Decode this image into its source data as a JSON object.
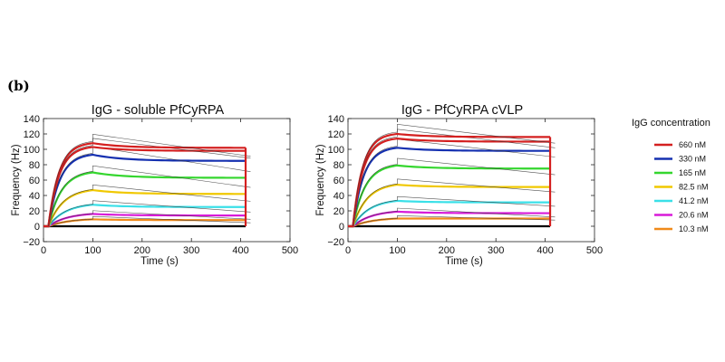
{
  "panel_label": "(b)",
  "legend": {
    "title": "IgG concentration",
    "entries": [
      {
        "label": "660 nM",
        "color": "#d42020"
      },
      {
        "label": "330 nM",
        "color": "#1530b0"
      },
      {
        "label": "165 nM",
        "color": "#34d62e"
      },
      {
        "label": "82.5 nM",
        "color": "#f0c800"
      },
      {
        "label": "41.2 nM",
        "color": "#3ae0e8"
      },
      {
        "label": "20.6 nM",
        "color": "#d81ad8"
      },
      {
        "label": "10.3 nM",
        "color": "#f08a1a"
      }
    ]
  },
  "chart_data": [
    {
      "type": "line",
      "title": "IgG - soluble PfCyRPA",
      "xlabel": "Time (s)",
      "ylabel": "Frequency (Hz)",
      "xlim": [
        0,
        500
      ],
      "ylim": [
        -20,
        140
      ],
      "x_ticks": [
        0,
        100,
        200,
        300,
        400,
        500
      ],
      "y_ticks": [
        -20,
        0,
        20,
        40,
        60,
        80,
        100,
        120,
        140
      ],
      "association_end_s": 100,
      "dissociation_end_s": 410,
      "series": [
        {
          "name": "660 nM",
          "color": "#d42020",
          "peak": 108,
          "end": 102
        },
        {
          "name": "660 nM",
          "color": "#d42020",
          "peak": 103,
          "end": 98
        },
        {
          "name": "330 nM",
          "color": "#1530b0",
          "peak": 93,
          "end": 85
        },
        {
          "name": "165 nM",
          "color": "#34d62e",
          "peak": 70,
          "end": 63
        },
        {
          "name": "82.5 nM",
          "color": "#f0c800",
          "peak": 47,
          "end": 42
        },
        {
          "name": "41.2 nM",
          "color": "#3ae0e8",
          "peak": 28,
          "end": 25
        },
        {
          "name": "20.6 nM",
          "color": "#d81ad8",
          "peak": 16,
          "end": 14
        },
        {
          "name": "10.3 nM",
          "color": "#f08a1a",
          "peak": 9,
          "end": 8
        }
      ]
    },
    {
      "type": "line",
      "title": "IgG - PfCyRPA cVLP",
      "xlabel": "Time (s)",
      "ylabel": "Frequency (Hz)",
      "xlim": [
        0,
        500
      ],
      "ylim": [
        -20,
        140
      ],
      "x_ticks": [
        0,
        100,
        200,
        300,
        400,
        500
      ],
      "y_ticks": [
        -20,
        0,
        20,
        40,
        60,
        80,
        100,
        120,
        140
      ],
      "association_end_s": 100,
      "dissociation_end_s": 410,
      "series": [
        {
          "name": "660 nM",
          "color": "#d42020",
          "peak": 120,
          "end": 116
        },
        {
          "name": "660 nM",
          "color": "#d42020",
          "peak": 114,
          "end": 110
        },
        {
          "name": "330 nM",
          "color": "#1530b0",
          "peak": 102,
          "end": 98
        },
        {
          "name": "165 nM",
          "color": "#34d62e",
          "peak": 79,
          "end": 75
        },
        {
          "name": "82.5 nM",
          "color": "#f0c800",
          "peak": 54,
          "end": 51
        },
        {
          "name": "41.2 nM",
          "color": "#3ae0e8",
          "peak": 33,
          "end": 31
        },
        {
          "name": "20.6 nM",
          "color": "#d81ad8",
          "peak": 19,
          "end": 17
        },
        {
          "name": "10.3 nM",
          "color": "#f08a1a",
          "peak": 10,
          "end": 10
        }
      ]
    }
  ]
}
